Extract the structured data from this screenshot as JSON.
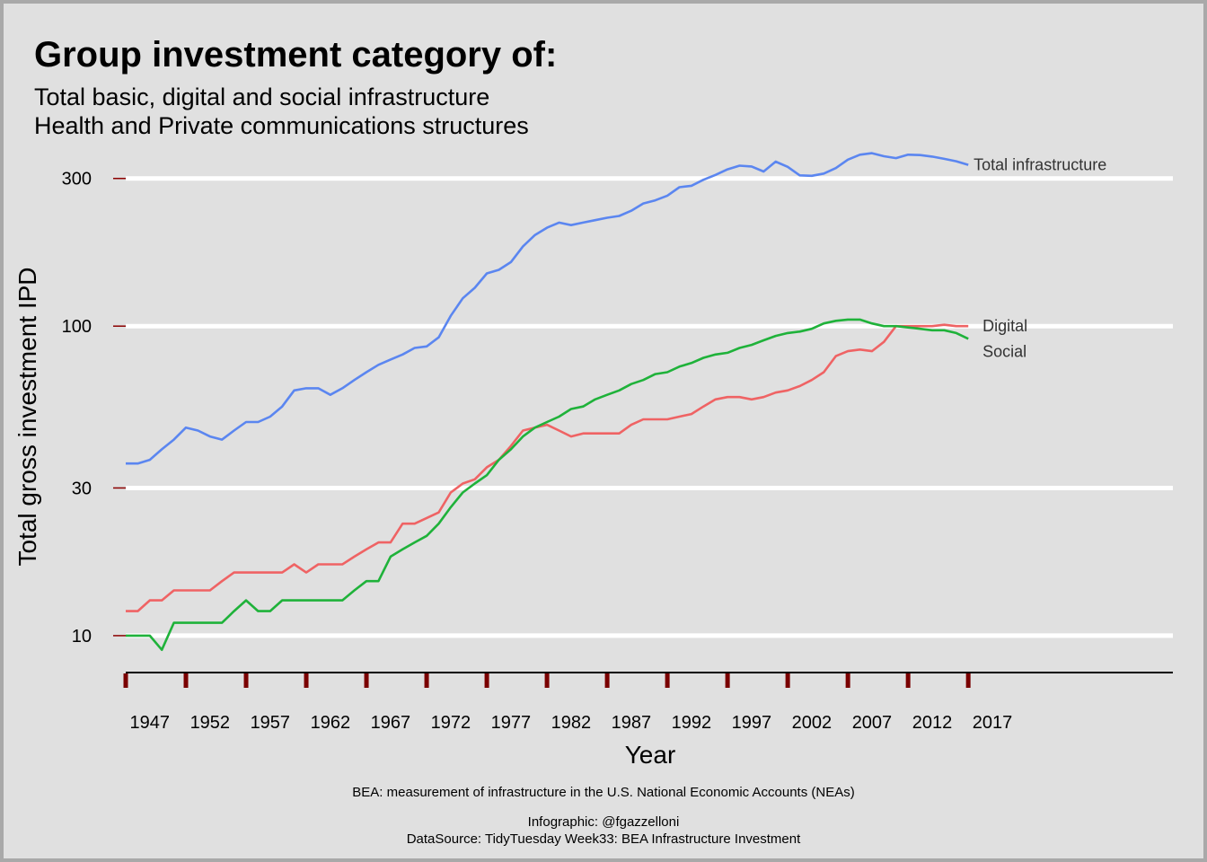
{
  "chart_data": {
    "type": "line",
    "title": "Group investment category of:",
    "subtitle": [
      "Total basic, digital and social infrastructure",
      "Health and Private communications structures"
    ],
    "xlabel": "Year",
    "ylabel": "Total gross investment IPD",
    "yscale": "log",
    "ylim": [
      7.6,
      340
    ],
    "y_ticks": [
      10,
      30,
      100,
      300
    ],
    "xlim": [
      1945,
      2032
    ],
    "x_ticks": [
      1947,
      1952,
      1957,
      1962,
      1967,
      1972,
      1977,
      1982,
      1987,
      1992,
      1997,
      2002,
      2007,
      2012,
      2017
    ],
    "x_tick_marks": [
      1945,
      1950,
      1955,
      1960,
      1965,
      1970,
      1975,
      1980,
      1985,
      1990,
      1995,
      2000,
      2005,
      2010,
      2015
    ],
    "grid": "horizontal",
    "legend": "none",
    "x": [
      1945,
      1946,
      1947,
      1948,
      1949,
      1950,
      1951,
      1952,
      1953,
      1954,
      1955,
      1956,
      1957,
      1958,
      1959,
      1960,
      1961,
      1962,
      1963,
      1964,
      1965,
      1966,
      1967,
      1968,
      1969,
      1970,
      1971,
      1972,
      1973,
      1974,
      1975,
      1976,
      1977,
      1978,
      1979,
      1980,
      1981,
      1982,
      1983,
      1984,
      1985,
      1986,
      1987,
      1988,
      1989,
      1990,
      1991,
      1992,
      1993,
      1994,
      1995,
      1996,
      1997,
      1998,
      1999,
      2000,
      2001,
      2002,
      2003,
      2004,
      2005,
      2006,
      2007,
      2008,
      2009,
      2010,
      2011,
      2012,
      2013,
      2014,
      2015
    ],
    "series": [
      {
        "name": "Total infrastructure",
        "color": "#5b86f0",
        "values": [
          36,
          36,
          37,
          40,
          43,
          47,
          46,
          44,
          43,
          46,
          49,
          49,
          51,
          55,
          62,
          63,
          63,
          60,
          63,
          67,
          71,
          75,
          78,
          81,
          85,
          86,
          92,
          108,
          123,
          133,
          148,
          152,
          161,
          181,
          197,
          208,
          216,
          212,
          216,
          220,
          224,
          227,
          236,
          249,
          255,
          264,
          281,
          284,
          297,
          308,
          321,
          330,
          328,
          316,
          340,
          327,
          307,
          306,
          311,
          324,
          345,
          358,
          362,
          354,
          349,
          358,
          357,
          353,
          347,
          341,
          332
        ]
      },
      {
        "name": "Digital",
        "color": "#ef6364",
        "values": [
          12,
          12,
          13,
          13,
          14,
          14,
          14,
          14,
          15,
          16,
          16,
          16,
          16,
          16,
          17,
          16,
          17,
          17,
          17,
          18,
          19,
          20,
          20,
          23,
          23,
          24,
          25,
          29,
          31,
          32,
          35,
          37,
          41,
          46,
          47,
          48,
          46,
          44,
          45,
          45,
          45,
          45,
          48,
          50,
          50,
          50,
          51,
          52,
          55,
          58,
          59,
          59,
          58,
          59,
          61,
          62,
          64,
          67,
          71,
          80,
          83,
          84,
          83,
          89,
          100,
          100,
          100,
          100,
          101,
          100,
          100
        ]
      },
      {
        "name": "Social",
        "color": "#1fb23a",
        "values": [
          10,
          10,
          10,
          9,
          11,
          11,
          11,
          11,
          11,
          12,
          13,
          12,
          12,
          13,
          13,
          13,
          13,
          13,
          13,
          14,
          15,
          15,
          18,
          19,
          20,
          21,
          23,
          26,
          29,
          31,
          33,
          37,
          40,
          44,
          47,
          49,
          51,
          54,
          55,
          58,
          60,
          62,
          65,
          67,
          70,
          71,
          74,
          76,
          79,
          81,
          82,
          85,
          87,
          90,
          93,
          95,
          96,
          98,
          102,
          104,
          105,
          105,
          102,
          100,
          100,
          99,
          98,
          97,
          97,
          95,
          91
        ]
      }
    ],
    "caption": [
      "BEA: measurement of infrastructure in the U.S. National Economic Accounts (NEAs)",
      "Infographic: @fgazzelloni",
      "DataSource: TidyTuesday Week33: BEA Infrastructure Investment"
    ]
  }
}
